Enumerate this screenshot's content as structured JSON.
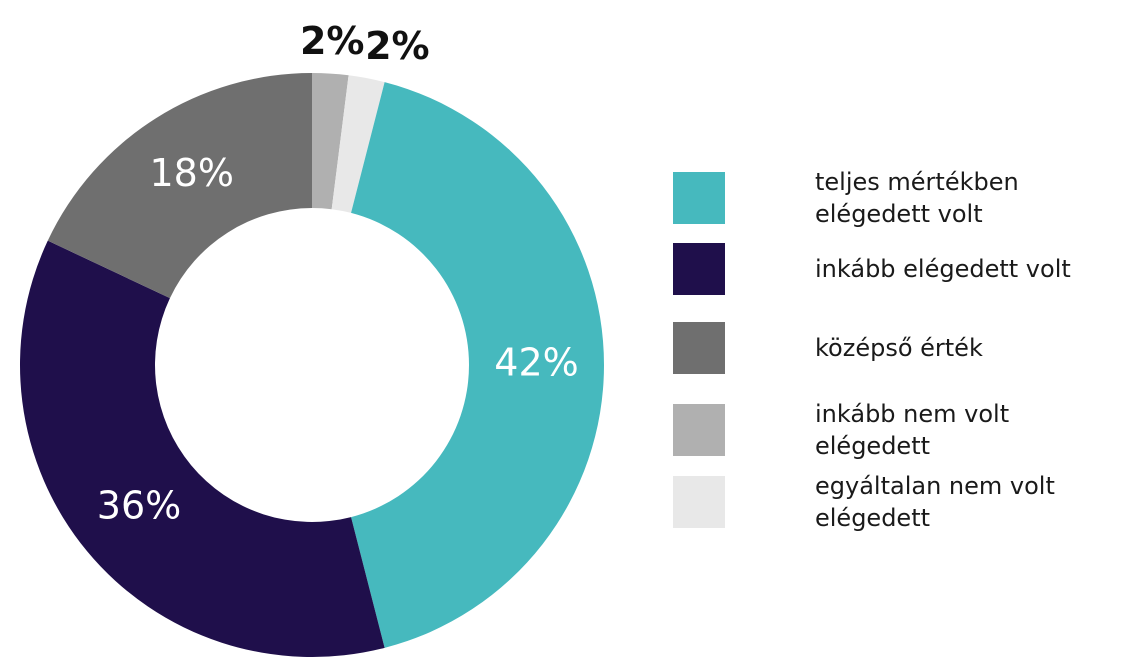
{
  "chart_data": {
    "type": "donut",
    "categories": [
      "teljes mértékben elégedett volt",
      "inkább elégedett volt",
      "középső érték",
      "inkább nem volt elégedett",
      "egyáltalan nem volt elégedett"
    ],
    "values": [
      42,
      36,
      18,
      2,
      2
    ],
    "value_labels": [
      "42%",
      "36%",
      "18%",
      "2%",
      "2%"
    ],
    "colors": [
      "#46b9be",
      "#1f0f4b",
      "#6f6f6f",
      "#b0b0b0",
      "#e8e8e8"
    ],
    "legend": "right"
  }
}
